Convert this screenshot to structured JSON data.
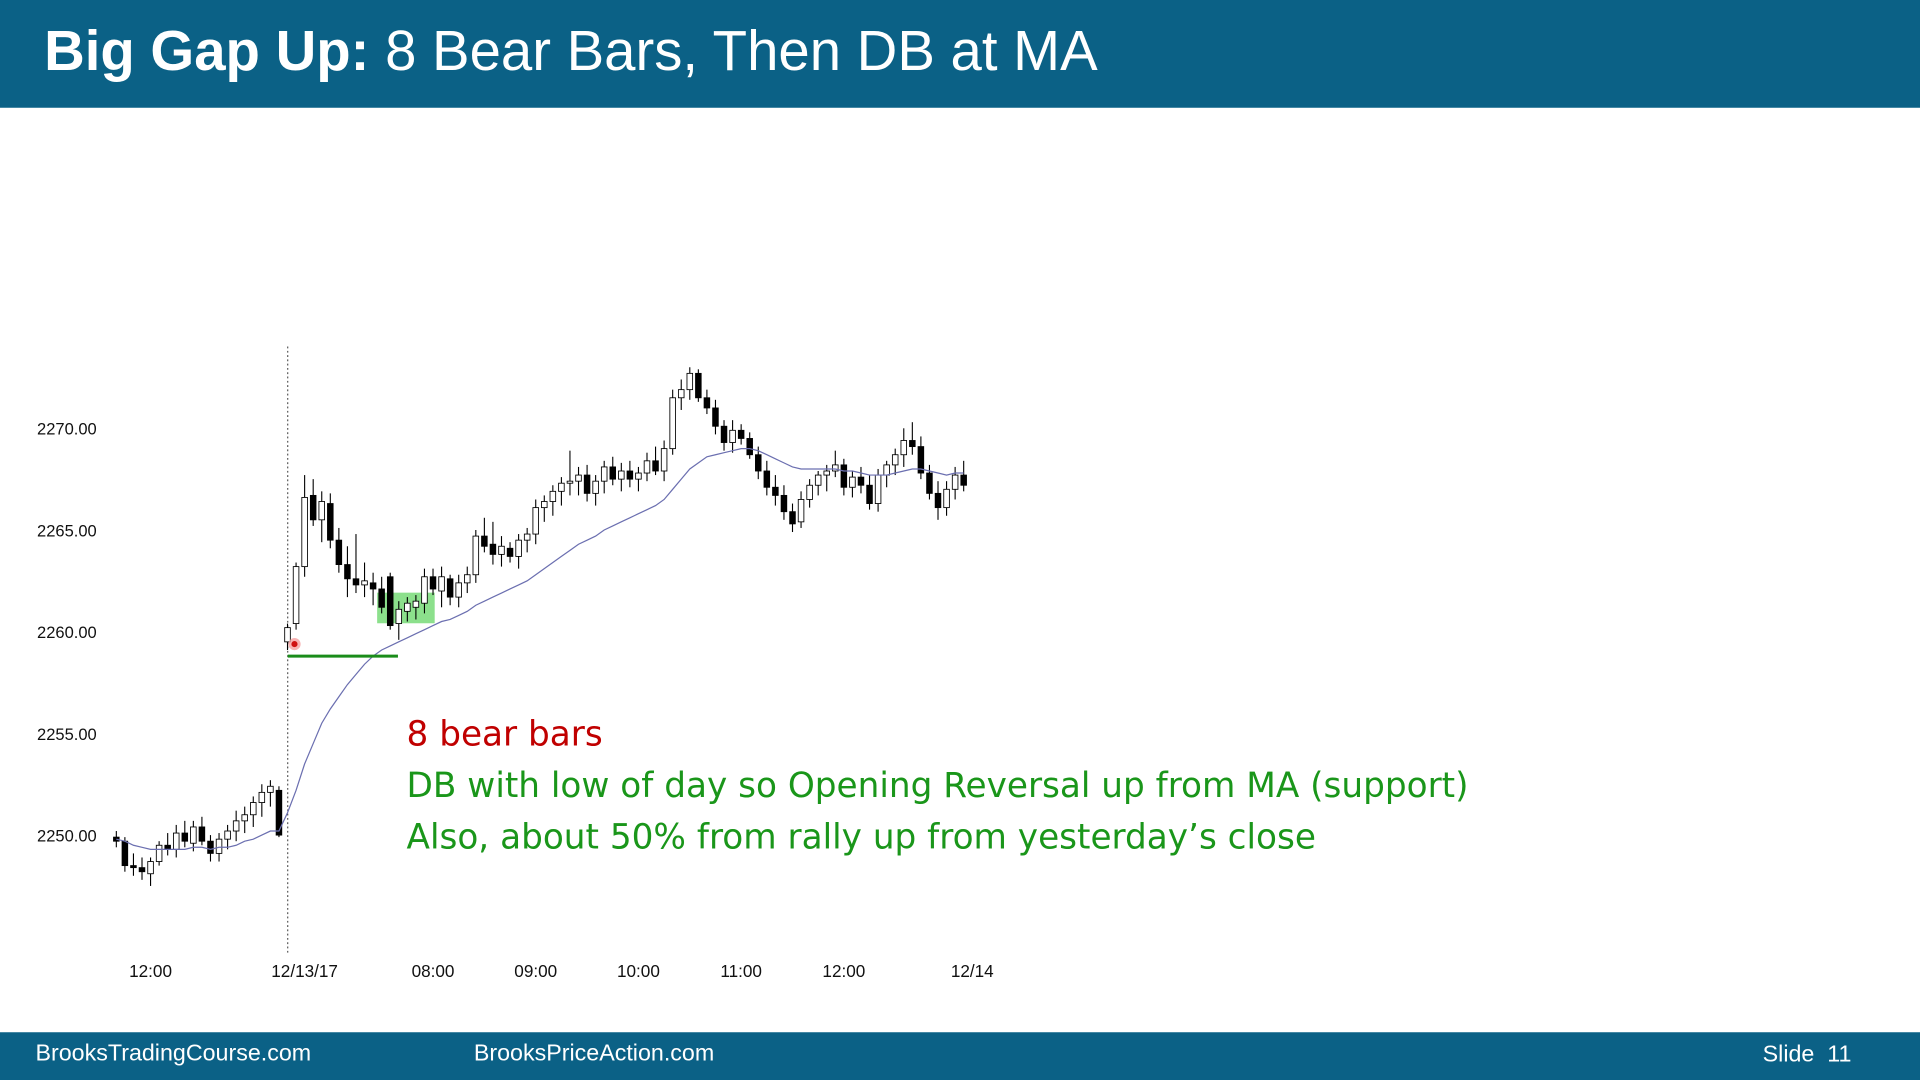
{
  "header": {
    "title_bold": "Big Gap Up:",
    "title_rest": " 8 Bear Bars, Then DB at MA"
  },
  "chart_data": {
    "type": "candlestick",
    "categories": [
      null,
      null,
      null,
      null,
      "12:00",
      null,
      null,
      null,
      null,
      null,
      null,
      null,
      null,
      null,
      null,
      null,
      null,
      null,
      null,
      null,
      null,
      null,
      "12/13/17",
      null,
      null,
      null,
      null,
      null,
      null,
      null,
      null,
      null,
      null,
      null,
      null,
      null,
      null,
      "08:00",
      null,
      null,
      null,
      null,
      null,
      null,
      null,
      null,
      null,
      null,
      null,
      "09:00",
      null,
      null,
      null,
      null,
      null,
      null,
      null,
      null,
      null,
      null,
      null,
      "10:00",
      null,
      null,
      null,
      null,
      null,
      null,
      null,
      null,
      null,
      null,
      null,
      "11:00",
      null,
      null,
      null,
      null,
      null,
      null,
      null,
      null,
      null,
      null,
      null,
      "12:00",
      null,
      null,
      null,
      null,
      null,
      null,
      null,
      null,
      null,
      null,
      null,
      null,
      null,
      null,
      "12/14"
    ],
    "open": [
      2250,
      2249.8,
      2248.6,
      2248.5,
      2248.2,
      2248.8,
      2249.6,
      2249.4,
      2250.2,
      2249.7,
      2250.5,
      2249.8,
      2249.2,
      2249.9,
      2250.3,
      2250.8,
      2251.1,
      2251.7,
      2252.2,
      2252.3,
      2259.6,
      2260.5,
      2263.3,
      2266.8,
      2265.6,
      2266.4,
      2264.6,
      2263.4,
      2262.7,
      2262.4,
      2262.5,
      2262.2,
      2262.8,
      2260.5,
      2261.1,
      2261.3,
      2261.5,
      2262.8,
      2262.1,
      2262.7,
      2261.8,
      2262.5,
      2262.9,
      2264.8,
      2264.4,
      2263.9,
      2264.2,
      2263.8,
      2264.6,
      2264.9,
      2266.2,
      2266.5,
      2267,
      2267.4,
      2267.5,
      2267.8,
      2266.9,
      2267.5,
      2268.2,
      2267.6,
      2268,
      2267.6,
      2267.9,
      2268.5,
      2268,
      2269.1,
      2271.6,
      2272,
      2272.8,
      2271.6,
      2271.1,
      2270.2,
      2269.4,
      2270,
      2269.6,
      2268.8,
      2268,
      2267.2,
      2266.8,
      2266,
      2265.5,
      2266.6,
      2267.3,
      2267.8,
      2268,
      2268.3,
      2267.2,
      2267.7,
      2267.3,
      2266.4,
      2267.8,
      2268.3,
      2268.8,
      2269.5,
      2269.2,
      2267.9,
      2266.9,
      2266.2,
      2267.1,
      2267.8,
      null
    ],
    "high": [
      2250.3,
      2250,
      2249.2,
      2249,
      2249,
      2249.8,
      2250.2,
      2250.6,
      2250.8,
      2250.8,
      2251,
      2250.1,
      2250.2,
      2250.6,
      2251.3,
      2251.5,
      2252,
      2252.6,
      2252.8,
      2252.5,
      2260.5,
      2263.5,
      2267.8,
      2267.6,
      2267,
      2266.9,
      2265.2,
      2264.3,
      2264.9,
      2263.5,
      2263,
      2262.8,
      2263,
      2261.6,
      2261.8,
      2261.9,
      2263.2,
      2263.2,
      2263.3,
      2262.9,
      2262.9,
      2263.3,
      2265.1,
      2265.7,
      2265.5,
      2264.8,
      2264.5,
      2264.9,
      2265.2,
      2266.6,
      2266.8,
      2267.3,
      2267.7,
      2269,
      2268.2,
      2268.3,
      2267.8,
      2268.5,
      2268.7,
      2268.4,
      2268.5,
      2268.2,
      2268.9,
      2269.2,
      2269.5,
      2272,
      2272.5,
      2273.1,
      2273,
      2272,
      2271.5,
      2270.5,
      2270.5,
      2270.3,
      2269.9,
      2269.2,
      2268.5,
      2267.8,
      2267.3,
      2266.4,
      2267,
      2267.6,
      2268,
      2268.3,
      2269,
      2268.6,
      2268,
      2268.2,
      2267.8,
      2268.1,
      2268.5,
      2269.1,
      2270.1,
      2270.4,
      2269.7,
      2268.3,
      2267.5,
      2267.5,
      2268.2,
      2268.5,
      null
    ],
    "low": [
      2249.5,
      2248.3,
      2248.1,
      2247.9,
      2247.6,
      2248.6,
      2249.1,
      2249,
      2249.5,
      2249.3,
      2249.6,
      2248.8,
      2248.8,
      2249.4,
      2249.8,
      2250.2,
      2250.5,
      2251,
      2251.5,
      2250,
      2259.2,
      2260.2,
      2262.8,
      2265.3,
      2264.5,
      2264.2,
      2263,
      2261.8,
      2262,
      2261.8,
      2261.4,
      2261,
      2260.2,
      2259.7,
      2260.6,
      2260.7,
      2261,
      2261.9,
      2261.3,
      2261.4,
      2261.3,
      2262,
      2262.5,
      2264,
      2263.4,
      2263.3,
      2263.5,
      2263.2,
      2264,
      2264.4,
      2265.5,
      2265.8,
      2266.3,
      2266.8,
      2266.8,
      2266.5,
      2266.3,
      2266.9,
      2267.3,
      2267,
      2267.2,
      2267,
      2267.5,
      2267.8,
      2267.5,
      2268.8,
      2271,
      2271.5,
      2271.4,
      2270.8,
      2269.8,
      2269,
      2268.9,
      2269.3,
      2268.6,
      2267.6,
      2266.8,
      2266.3,
      2265.6,
      2265,
      2265.2,
      2266.2,
      2266.8,
      2267,
      2267.7,
      2266.8,
      2266.7,
      2266.9,
      2266.1,
      2266,
      2267.2,
      2267.8,
      2268.2,
      2268.8,
      2267.6,
      2266.6,
      2265.6,
      2265.8,
      2266.6,
      2267,
      null
    ],
    "close": [
      2249.8,
      2248.6,
      2248.5,
      2248.3,
      2248.8,
      2249.6,
      2249.4,
      2250.2,
      2249.8,
      2250.5,
      2249.8,
      2249.2,
      2249.9,
      2250.3,
      2250.8,
      2251.1,
      2251.7,
      2252.2,
      2252.5,
      2250.1,
      2260.3,
      2263.3,
      2266.7,
      2265.6,
      2266.5,
      2264.6,
      2263.4,
      2262.7,
      2262.4,
      2262.6,
      2262.2,
      2261.3,
      2260.4,
      2261.2,
      2261.5,
      2261.6,
      2262.8,
      2262.2,
      2262.8,
      2261.8,
      2262.5,
      2262.9,
      2264.8,
      2264.3,
      2263.9,
      2264.3,
      2263.8,
      2264.6,
      2264.9,
      2266.2,
      2266.5,
      2267,
      2267.4,
      2267.5,
      2267.8,
      2266.9,
      2267.5,
      2268.2,
      2267.6,
      2268,
      2267.6,
      2267.9,
      2268.5,
      2268,
      2269.1,
      2271.6,
      2272,
      2272.8,
      2271.6,
      2271.1,
      2270.2,
      2269.4,
      2270,
      2269.6,
      2268.8,
      2268,
      2267.2,
      2266.8,
      2266,
      2265.4,
      2266.6,
      2267.3,
      2267.8,
      2268,
      2268.3,
      2267.2,
      2267.7,
      2267.3,
      2266.4,
      2267.8,
      2268.3,
      2268.8,
      2269.5,
      2269.2,
      2267.9,
      2266.9,
      2266.2,
      2267.1,
      2267.8,
      2267.3,
      null
    ],
    "ma_values": [
      2249.9,
      2249.8,
      2249.6,
      2249.5,
      2249.4,
      2249.4,
      2249.4,
      2249.4,
      2249.4,
      2249.5,
      2249.5,
      2249.4,
      2249.5,
      2249.5,
      2249.6,
      2249.8,
      2249.9,
      2250.1,
      2250.3,
      2250.3,
      2251.2,
      2252.3,
      2253.6,
      2254.6,
      2255.6,
      2256.3,
      2256.9,
      2257.5,
      2258,
      2258.5,
      2258.9,
      2259.2,
      2259.4,
      2259.6,
      2259.8,
      2260,
      2260.2,
      2260.4,
      2260.6,
      2260.7,
      2260.9,
      2261.1,
      2261.4,
      2261.6,
      2261.8,
      2262,
      2262.2,
      2262.4,
      2262.6,
      2262.9,
      2263.2,
      2263.5,
      2263.8,
      2264.1,
      2264.4,
      2264.6,
      2264.8,
      2265.1,
      2265.3,
      2265.5,
      2265.7,
      2265.9,
      2266.1,
      2266.3,
      2266.6,
      2267.1,
      2267.6,
      2268.1,
      2268.4,
      2268.7,
      2268.8,
      2268.9,
      2269,
      2269.1,
      2269.1,
      2269,
      2268.8,
      2268.6,
      2268.4,
      2268.2,
      2268.1,
      2268.1,
      2268.1,
      2268.1,
      2268.1,
      2268,
      2268,
      2267.9,
      2267.8,
      2267.8,
      2267.8,
      2267.9,
      2268,
      2268.1,
      2268.1,
      2268,
      2267.9,
      2267.8,
      2267.9,
      2267.9,
      null
    ],
    "ma_color": "#6b6fb0",
    "bull_color": "#ffffff",
    "bear_color": "#000000",
    "hline": {
      "value": 2258.9,
      "color": "#1a8c1a"
    },
    "ylim": [
      2244.2,
      2274.3
    ],
    "yticks": [
      {
        "value": 2250,
        "label": "2250.00"
      },
      {
        "value": 2255,
        "label": "2255.00"
      },
      {
        "value": 2260,
        "label": "2260.00"
      },
      {
        "value": 2265,
        "label": "2265.00"
      },
      {
        "value": 2270,
        "label": "2270.00"
      }
    ]
  },
  "annotations": [
    "8 bear bars",
    "DB with low of day so Opening Reversal up from MA (support)",
    "Also, about 50% from rally up from yesterday’s close"
  ],
  "footer": {
    "left": "BrooksTradingCourse.com",
    "middle": "BrooksPriceAction.com",
    "right": "Slide  11"
  }
}
